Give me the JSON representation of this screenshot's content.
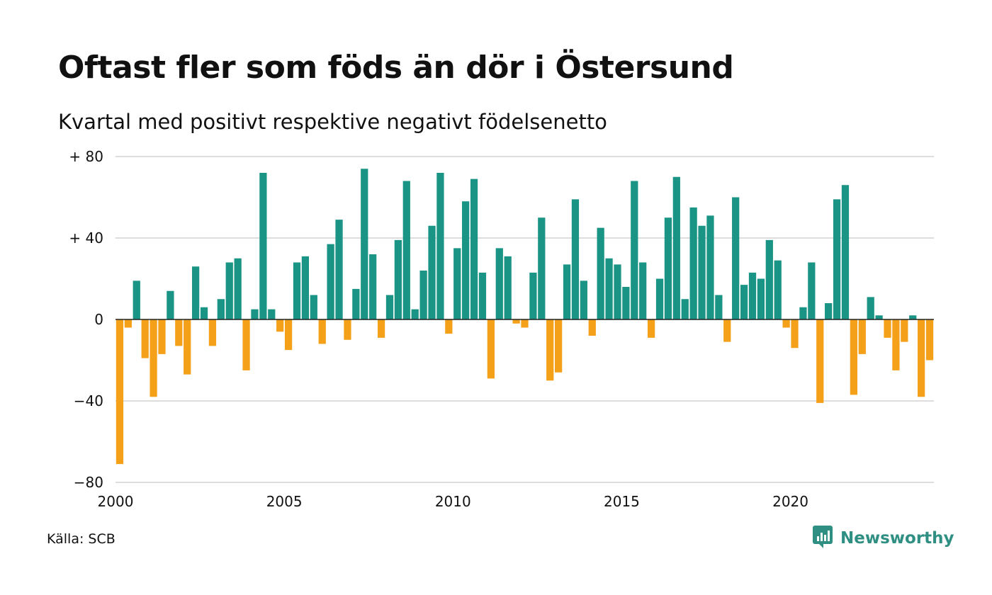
{
  "title": "Oftast fler som föds än dör i Östersund",
  "subtitle": "Kvartal med positivt respektive negativt födelsenetto",
  "source": "Källa: SCB",
  "brand": {
    "name": "Newsworthy",
    "icon": "newsworthy-logo-icon"
  },
  "colors": {
    "positive": "#1a9484",
    "negative": "#f4a019",
    "grid": "#dddddd",
    "axis": "#222222"
  },
  "chart_data": {
    "type": "bar",
    "title": "Oftast fler som föds än dör i Östersund",
    "subtitle": "Kvartal med positivt respektive negativt födelsenetto",
    "xlabel": "",
    "ylabel": "",
    "ylim": [
      -80,
      80
    ],
    "x_start": 2000,
    "x_end": 2024.25,
    "x_ticks": [
      {
        "value": 2000,
        "label": "2000"
      },
      {
        "value": 2005,
        "label": "2005"
      },
      {
        "value": 2010,
        "label": "2010"
      },
      {
        "value": 2015,
        "label": "2015"
      },
      {
        "value": 2020,
        "label": "2020"
      }
    ],
    "y_ticks": [
      {
        "value": 80,
        "label": "+ 80"
      },
      {
        "value": 40,
        "label": "+ 40"
      },
      {
        "value": 0,
        "label": "0"
      },
      {
        "value": -40,
        "label": "−40"
      },
      {
        "value": -80,
        "label": "−80"
      }
    ],
    "grid": true,
    "categories": [
      "2000 K1",
      "2000 K2",
      "2000 K3",
      "2000 K4",
      "2001 K1",
      "2001 K2",
      "2001 K3",
      "2001 K4",
      "2002 K1",
      "2002 K2",
      "2002 K3",
      "2002 K4",
      "2003 K1",
      "2003 K2",
      "2003 K3",
      "2003 K4",
      "2004 K1",
      "2004 K2",
      "2004 K3",
      "2004 K4",
      "2005 K1",
      "2005 K2",
      "2005 K3",
      "2005 K4",
      "2006 K1",
      "2006 K2",
      "2006 K3",
      "2006 K4",
      "2007 K1",
      "2007 K2",
      "2007 K3",
      "2007 K4",
      "2008 K1",
      "2008 K2",
      "2008 K3",
      "2008 K4",
      "2009 K1",
      "2009 K2",
      "2009 K3",
      "2009 K4",
      "2010 K1",
      "2010 K2",
      "2010 K3",
      "2010 K4",
      "2011 K1",
      "2011 K2",
      "2011 K3",
      "2011 K4",
      "2012 K1",
      "2012 K2",
      "2012 K3",
      "2012 K4",
      "2013 K1",
      "2013 K2",
      "2013 K3",
      "2013 K4",
      "2014 K1",
      "2014 K2",
      "2014 K3",
      "2014 K4",
      "2015 K1",
      "2015 K2",
      "2015 K3",
      "2015 K4",
      "2016 K1",
      "2016 K2",
      "2016 K3",
      "2016 K4",
      "2017 K1",
      "2017 K2",
      "2017 K3",
      "2017 K4",
      "2018 K1",
      "2018 K2",
      "2018 K3",
      "2018 K4",
      "2019 K1",
      "2019 K2",
      "2019 K3",
      "2019 K4",
      "2020 K1",
      "2020 K2",
      "2020 K3",
      "2020 K4",
      "2021 K1",
      "2021 K2",
      "2021 K3",
      "2021 K4",
      "2022 K1",
      "2022 K2",
      "2022 K3",
      "2022 K4",
      "2023 K1",
      "2023 K2",
      "2023 K3",
      "2023 K4",
      "2024 K1"
    ],
    "values": [
      -71,
      -4,
      19,
      -19,
      -38,
      -17,
      14,
      -13,
      -27,
      26,
      6,
      -13,
      10,
      28,
      30,
      -25,
      5,
      72,
      5,
      -6,
      -15,
      28,
      31,
      12,
      -12,
      37,
      49,
      -10,
      15,
      74,
      32,
      -9,
      12,
      39,
      68,
      5,
      24,
      46,
      72,
      -7,
      35,
      58,
      69,
      23,
      -29,
      35,
      31,
      -2,
      -4,
      23,
      50,
      -30,
      -26,
      27,
      59,
      19,
      -8,
      45,
      30,
      27,
      16,
      68,
      28,
      -9,
      20,
      50,
      70,
      10,
      55,
      46,
      51,
      12,
      -11,
      60,
      17,
      23,
      20,
      39,
      29,
      -4,
      -14,
      6,
      28,
      -41,
      8,
      59,
      66,
      -37,
      -17,
      11,
      2,
      -9,
      -25,
      -11,
      2,
      -38,
      -20
    ]
  }
}
